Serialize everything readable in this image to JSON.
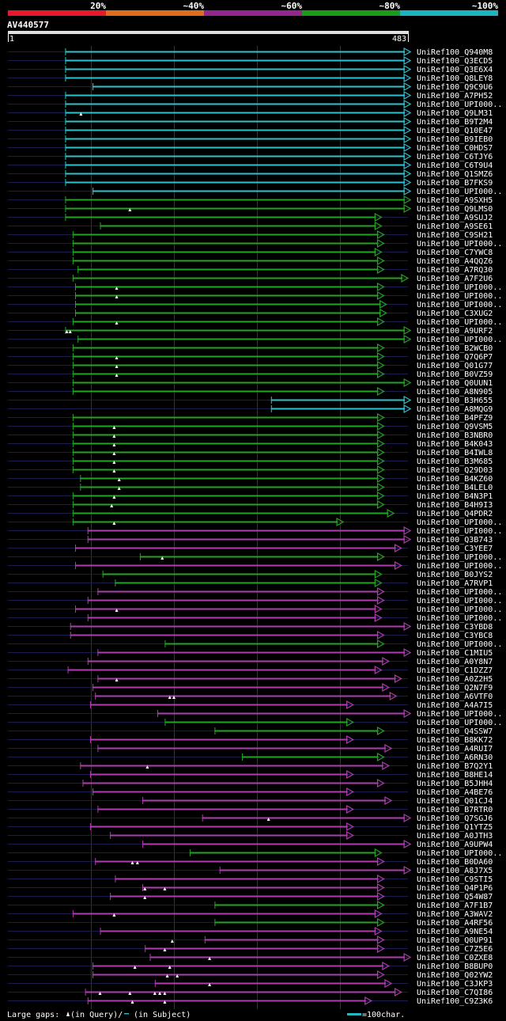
{
  "chart_data": {
    "type": "alignment-overview",
    "query_id": "AV440577",
    "query_length": 483,
    "scale_start_label": "1",
    "scale_end_label": "483",
    "identity_legend": [
      {
        "label": "20%",
        "color": "#e8192c"
      },
      {
        "label": "~40%",
        "color": "#e06c1c"
      },
      {
        "label": "~60%",
        "color": "#93278f"
      },
      {
        "label": "~80%",
        "color": "#1a9c1a"
      },
      {
        "label": "~100%",
        "color": "#1cb4bf"
      }
    ],
    "identity_colors": {
      "cyan": "#2dc3cc",
      "green": "#22a522",
      "magenta": "#b03cb0"
    },
    "hits": [
      {
        "id": "UniRef100_Q940M8",
        "start": 70,
        "end": 485,
        "identity": "cyan",
        "gaps": []
      },
      {
        "id": "UniRef100_Q3ECD5",
        "start": 70,
        "end": 485,
        "identity": "cyan",
        "gaps": []
      },
      {
        "id": "UniRef100_Q3E6X4",
        "start": 70,
        "end": 485,
        "identity": "cyan",
        "gaps": []
      },
      {
        "id": "UniRef100_Q8LEY8",
        "start": 70,
        "end": 485,
        "identity": "cyan",
        "gaps": []
      },
      {
        "id": "UniRef100_Q9C9U6",
        "start": 103,
        "end": 485,
        "identity": "cyan",
        "gaps": []
      },
      {
        "id": "UniRef100_A7PH52",
        "start": 70,
        "end": 485,
        "identity": "cyan",
        "gaps": []
      },
      {
        "id": "UniRef100_UPI000..",
        "start": 70,
        "end": 485,
        "identity": "cyan",
        "gaps": []
      },
      {
        "id": "UniRef100_Q9LM31",
        "start": 70,
        "end": 485,
        "identity": "cyan",
        "gaps": [
          89
        ]
      },
      {
        "id": "UniRef100_B9T2M4",
        "start": 70,
        "end": 485,
        "identity": "cyan",
        "gaps": []
      },
      {
        "id": "UniRef100_Q10E47",
        "start": 70,
        "end": 485,
        "identity": "cyan",
        "gaps": []
      },
      {
        "id": "UniRef100_B9IEB0",
        "start": 70,
        "end": 485,
        "identity": "cyan",
        "gaps": []
      },
      {
        "id": "UniRef100_C0HDS7",
        "start": 70,
        "end": 485,
        "identity": "cyan",
        "gaps": []
      },
      {
        "id": "UniRef100_C6TJY6",
        "start": 70,
        "end": 485,
        "identity": "cyan",
        "gaps": []
      },
      {
        "id": "UniRef100_C6T9U4",
        "start": 70,
        "end": 485,
        "identity": "cyan",
        "gaps": []
      },
      {
        "id": "UniRef100_Q1SMZ6",
        "start": 70,
        "end": 485,
        "identity": "cyan",
        "gaps": []
      },
      {
        "id": "UniRef100_B7FKS9",
        "start": 70,
        "end": 485,
        "identity": "cyan",
        "gaps": []
      },
      {
        "id": "UniRef100_UPI000..",
        "start": 103,
        "end": 485,
        "identity": "cyan",
        "gaps": []
      },
      {
        "id": "UniRef100_A9SXH5",
        "start": 70,
        "end": 485,
        "identity": "green",
        "gaps": []
      },
      {
        "id": "UniRef100_Q9LMS0",
        "start": 70,
        "end": 485,
        "identity": "green",
        "gaps": [
          148
        ]
      },
      {
        "id": "UniRef100_A9SUJ2",
        "start": 70,
        "end": 450,
        "identity": "green",
        "gaps": []
      },
      {
        "id": "UniRef100_A9SE61",
        "start": 112,
        "end": 450,
        "identity": "green",
        "gaps": []
      },
      {
        "id": "UniRef100_C9SH21",
        "start": 79,
        "end": 453,
        "identity": "green",
        "gaps": []
      },
      {
        "id": "UniRef100_UPI000..",
        "start": 79,
        "end": 453,
        "identity": "green",
        "gaps": []
      },
      {
        "id": "UniRef100_C7YWC8",
        "start": 79,
        "end": 450,
        "identity": "green",
        "gaps": []
      },
      {
        "id": "UniRef100_A4QQZ6",
        "start": 79,
        "end": 453,
        "identity": "green",
        "gaps": []
      },
      {
        "id": "UniRef100_A7RQ30",
        "start": 85,
        "end": 453,
        "identity": "green",
        "gaps": []
      },
      {
        "id": "UniRef100_A7F2U6",
        "start": 79,
        "end": 482,
        "identity": "green",
        "gaps": []
      },
      {
        "id": "UniRef100_UPI000..",
        "start": 82,
        "end": 453,
        "identity": "green",
        "gaps": [
          132
        ]
      },
      {
        "id": "UniRef100_UPI000..",
        "start": 82,
        "end": 453,
        "identity": "green",
        "gaps": [
          132
        ]
      },
      {
        "id": "UniRef100_UPI000..",
        "start": 82,
        "end": 456,
        "identity": "green",
        "gaps": []
      },
      {
        "id": "UniRef100_C3XUG2",
        "start": 82,
        "end": 456,
        "identity": "green",
        "gaps": []
      },
      {
        "id": "UniRef100_UPI000..",
        "start": 79,
        "end": 453,
        "identity": "green",
        "gaps": [
          132
        ]
      },
      {
        "id": "UniRef100_A9URF2",
        "start": 70,
        "end": 485,
        "identity": "green",
        "gaps": [
          72,
          76
        ]
      },
      {
        "id": "UniRef100_UPI000..",
        "start": 85,
        "end": 485,
        "identity": "green",
        "gaps": []
      },
      {
        "id": "UniRef100_B2WCB0",
        "start": 79,
        "end": 453,
        "identity": "green",
        "gaps": []
      },
      {
        "id": "UniRef100_Q7Q6P7",
        "start": 79,
        "end": 453,
        "identity": "green",
        "gaps": [
          132
        ]
      },
      {
        "id": "UniRef100_Q01G77",
        "start": 79,
        "end": 453,
        "identity": "green",
        "gaps": [
          132
        ]
      },
      {
        "id": "UniRef100_B0VZ59",
        "start": 79,
        "end": 453,
        "identity": "green",
        "gaps": [
          132
        ]
      },
      {
        "id": "UniRef100_Q0UUN1",
        "start": 79,
        "end": 485,
        "identity": "green",
        "gaps": []
      },
      {
        "id": "UniRef100_A8N905",
        "start": 79,
        "end": 453,
        "identity": "green",
        "gaps": []
      },
      {
        "id": "UniRef100_B3H655",
        "start": 318,
        "end": 485,
        "identity": "cyan",
        "gaps": []
      },
      {
        "id": "UniRef100_A8MQG9",
        "start": 318,
        "end": 485,
        "identity": "cyan",
        "gaps": []
      },
      {
        "id": "UniRef100_B4PFZ9",
        "start": 79,
        "end": 453,
        "identity": "green",
        "gaps": []
      },
      {
        "id": "UniRef100_Q9VSM5",
        "start": 79,
        "end": 453,
        "identity": "green",
        "gaps": [
          129
        ]
      },
      {
        "id": "UniRef100_B3NBR0",
        "start": 79,
        "end": 453,
        "identity": "green",
        "gaps": [
          129
        ]
      },
      {
        "id": "UniRef100_B4K043",
        "start": 79,
        "end": 453,
        "identity": "green",
        "gaps": [
          129
        ]
      },
      {
        "id": "UniRef100_B4IWL8",
        "start": 79,
        "end": 453,
        "identity": "green",
        "gaps": [
          129
        ]
      },
      {
        "id": "UniRef100_B3M685",
        "start": 79,
        "end": 453,
        "identity": "green",
        "gaps": [
          129
        ]
      },
      {
        "id": "UniRef100_Q29D03",
        "start": 79,
        "end": 453,
        "identity": "green",
        "gaps": [
          129
        ]
      },
      {
        "id": "UniRef100_B4KZ60",
        "start": 88,
        "end": 453,
        "identity": "green",
        "gaps": [
          135
        ]
      },
      {
        "id": "UniRef100_B4LEL0",
        "start": 88,
        "end": 453,
        "identity": "green",
        "gaps": [
          135
        ]
      },
      {
        "id": "UniRef100_B4N3P1",
        "start": 79,
        "end": 453,
        "identity": "green",
        "gaps": [
          129
        ]
      },
      {
        "id": "UniRef100_B4H9I3",
        "start": 79,
        "end": 453,
        "identity": "green",
        "gaps": [
          126
        ]
      },
      {
        "id": "UniRef100_Q4PDR2",
        "start": 79,
        "end": 465,
        "identity": "green",
        "gaps": []
      },
      {
        "id": "UniRef100_UPI000..",
        "start": 79,
        "end": 404,
        "identity": "green",
        "gaps": [
          129
        ]
      },
      {
        "id": "UniRef100_UPI000..",
        "start": 97,
        "end": 485,
        "identity": "magenta",
        "gaps": []
      },
      {
        "id": "UniRef100_Q3B743",
        "start": 97,
        "end": 485,
        "identity": "magenta",
        "gaps": []
      },
      {
        "id": "UniRef100_C3YEE7",
        "start": 82,
        "end": 474,
        "identity": "magenta",
        "gaps": []
      },
      {
        "id": "UniRef100_UPI000..",
        "start": 160,
        "end": 453,
        "identity": "green",
        "gaps": [
          187
        ]
      },
      {
        "id": "UniRef100_UPI000..",
        "start": 82,
        "end": 474,
        "identity": "magenta",
        "gaps": []
      },
      {
        "id": "UniRef100_B0JYS2",
        "start": 115,
        "end": 450,
        "identity": "green",
        "gaps": []
      },
      {
        "id": "UniRef100_A7RVP1",
        "start": 130,
        "end": 450,
        "identity": "green",
        "gaps": []
      },
      {
        "id": "UniRef100_UPI000..",
        "start": 109,
        "end": 453,
        "identity": "magenta",
        "gaps": []
      },
      {
        "id": "UniRef100_UPI000..",
        "start": 97,
        "end": 453,
        "identity": "magenta",
        "gaps": []
      },
      {
        "id": "UniRef100_UPI000..",
        "start": 82,
        "end": 450,
        "identity": "magenta",
        "gaps": [
          132
        ]
      },
      {
        "id": "UniRef100_UPI000..",
        "start": 97,
        "end": 450,
        "identity": "magenta",
        "gaps": []
      },
      {
        "id": "UniRef100_C3YBD8",
        "start": 76,
        "end": 485,
        "identity": "magenta",
        "gaps": []
      },
      {
        "id": "UniRef100_C3YBC8",
        "start": 76,
        "end": 453,
        "identity": "magenta",
        "gaps": []
      },
      {
        "id": "UniRef100_UPI000..",
        "start": 190,
        "end": 453,
        "identity": "green",
        "gaps": []
      },
      {
        "id": "UniRef100_C1MIU5",
        "start": 109,
        "end": 485,
        "identity": "magenta",
        "gaps": []
      },
      {
        "id": "UniRef100_A0Y8N7",
        "start": 97,
        "end": 459,
        "identity": "magenta",
        "gaps": []
      },
      {
        "id": "UniRef100_C1DZZ7",
        "start": 73,
        "end": 450,
        "identity": "magenta",
        "gaps": []
      },
      {
        "id": "UniRef100_A0Z2H5",
        "start": 109,
        "end": 474,
        "identity": "magenta",
        "gaps": [
          132
        ]
      },
      {
        "id": "UniRef100_Q2N7F9",
        "start": 103,
        "end": 459,
        "identity": "magenta",
        "gaps": []
      },
      {
        "id": "UniRef100_A6VTF0",
        "start": 106,
        "end": 468,
        "identity": "magenta",
        "gaps": [
          196,
          201
        ]
      },
      {
        "id": "UniRef100_A4A7I5",
        "start": 100,
        "end": 416,
        "identity": "magenta",
        "gaps": []
      },
      {
        "id": "UniRef100_UPI000..",
        "start": 181,
        "end": 485,
        "identity": "magenta",
        "gaps": []
      },
      {
        "id": "UniRef100_UPI000..",
        "start": 190,
        "end": 416,
        "identity": "green",
        "gaps": []
      },
      {
        "id": "UniRef100_Q4SSW7",
        "start": 250,
        "end": 453,
        "identity": "green",
        "gaps": []
      },
      {
        "id": "UniRef100_B8KK72",
        "start": 100,
        "end": 416,
        "identity": "magenta",
        "gaps": []
      },
      {
        "id": "UniRef100_A4RUI7",
        "start": 109,
        "end": 462,
        "identity": "magenta",
        "gaps": []
      },
      {
        "id": "UniRef100_A6RN30",
        "start": 283,
        "end": 453,
        "identity": "green",
        "gaps": []
      },
      {
        "id": "UniRef100_B7Q2Y1",
        "start": 88,
        "end": 459,
        "identity": "magenta",
        "gaps": [
          169
        ]
      },
      {
        "id": "UniRef100_B8HE14",
        "start": 100,
        "end": 416,
        "identity": "magenta",
        "gaps": []
      },
      {
        "id": "UniRef100_B5JHH4",
        "start": 91,
        "end": 453,
        "identity": "magenta",
        "gaps": []
      },
      {
        "id": "UniRef100_A4BE76",
        "start": 103,
        "end": 416,
        "identity": "magenta",
        "gaps": []
      },
      {
        "id": "UniRef100_Q01CJ4",
        "start": 163,
        "end": 462,
        "identity": "magenta",
        "gaps": []
      },
      {
        "id": "UniRef100_B7RTR0",
        "start": 109,
        "end": 416,
        "identity": "magenta",
        "gaps": []
      },
      {
        "id": "UniRef100_Q7SGJ6",
        "start": 235,
        "end": 485,
        "identity": "magenta",
        "gaps": [
          315
        ]
      },
      {
        "id": "UniRef100_Q1YTZ5",
        "start": 100,
        "end": 416,
        "identity": "magenta",
        "gaps": []
      },
      {
        "id": "UniRef100_A0JTH3",
        "start": 124,
        "end": 416,
        "identity": "magenta",
        "gaps": []
      },
      {
        "id": "UniRef100_A9UPW4",
        "start": 163,
        "end": 485,
        "identity": "magenta",
        "gaps": []
      },
      {
        "id": "UniRef100_UPI000..",
        "start": 220,
        "end": 450,
        "identity": "green",
        "gaps": []
      },
      {
        "id": "UniRef100_B0DA60",
        "start": 106,
        "end": 453,
        "identity": "magenta",
        "gaps": [
          151,
          157
        ]
      },
      {
        "id": "UniRef100_A8J7X5",
        "start": 256,
        "end": 485,
        "identity": "magenta",
        "gaps": []
      },
      {
        "id": "UniRef100_C9STI5",
        "start": 130,
        "end": 453,
        "identity": "magenta",
        "gaps": []
      },
      {
        "id": "UniRef100_Q4P1P6",
        "start": 163,
        "end": 453,
        "identity": "magenta",
        "gaps": [
          166,
          190
        ]
      },
      {
        "id": "UniRef100_Q54W87",
        "start": 124,
        "end": 453,
        "identity": "magenta",
        "gaps": [
          166
        ]
      },
      {
        "id": "UniRef100_A7F1B7",
        "start": 250,
        "end": 453,
        "identity": "green",
        "gaps": []
      },
      {
        "id": "UniRef100_A3WAV2",
        "start": 79,
        "end": 450,
        "identity": "magenta",
        "gaps": [
          129
        ]
      },
      {
        "id": "UniRef100_A4RF56",
        "start": 250,
        "end": 453,
        "identity": "green",
        "gaps": []
      },
      {
        "id": "UniRef100_A9NE54",
        "start": 112,
        "end": 450,
        "identity": "magenta",
        "gaps": []
      },
      {
        "id": "UniRef100_Q0UP91",
        "start": 238,
        "end": 453,
        "identity": "magenta",
        "gaps": [
          199
        ]
      },
      {
        "id": "UniRef100_C7Z5E6",
        "start": 166,
        "end": 453,
        "identity": "magenta",
        "gaps": [
          190
        ]
      },
      {
        "id": "UniRef100_C0ZXE8",
        "start": 172,
        "end": 485,
        "identity": "magenta",
        "gaps": [
          244
        ]
      },
      {
        "id": "UniRef100_B8BUP0",
        "start": 103,
        "end": 459,
        "identity": "magenta",
        "gaps": [
          154,
          196
        ]
      },
      {
        "id": "UniRef100_Q02YW2",
        "start": 103,
        "end": 453,
        "identity": "magenta",
        "gaps": [
          193,
          205
        ]
      },
      {
        "id": "UniRef100_C3JKP3",
        "start": 178,
        "end": 462,
        "identity": "magenta",
        "gaps": [
          244
        ]
      },
      {
        "id": "UniRef100_C7QI86",
        "start": 94,
        "end": 474,
        "identity": "magenta",
        "gaps": [
          112,
          148,
          178,
          184,
          190
        ]
      },
      {
        "id": "UniRef100_C9Z3K6",
        "start": 97,
        "end": 438,
        "identity": "magenta",
        "gaps": [
          151,
          190
        ]
      }
    ],
    "footer_legend": {
      "gaps_prefix": "Large gaps: ",
      "gaps_query": "(in Query)/",
      "gaps_subject": " (in Subject)",
      "scale_text": "=100char."
    }
  }
}
